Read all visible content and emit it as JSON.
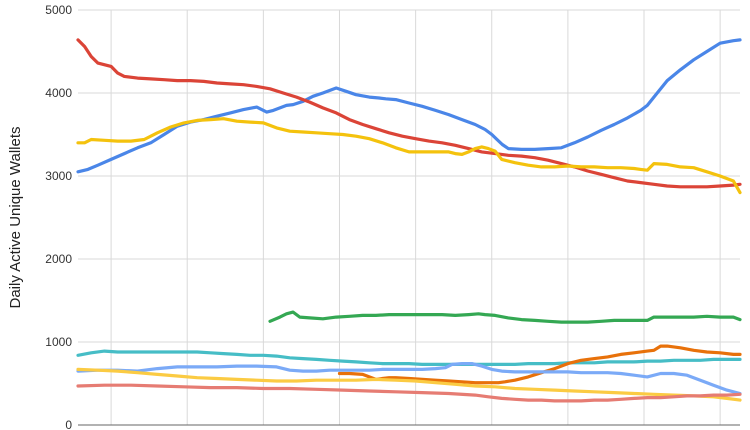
{
  "chart_data": {
    "type": "line",
    "title": "",
    "xlabel": "",
    "ylabel": "Daily Active Unique Wallets",
    "ylim": [
      0,
      5000
    ],
    "xlim": [
      0,
      100
    ],
    "yticks": [
      0,
      1000,
      2000,
      3000,
      4000,
      5000
    ],
    "xgrid_at": [
      5,
      16.5,
      28,
      39.5,
      51,
      62.5,
      74,
      85.5,
      97
    ],
    "grid": true,
    "legend": "none",
    "series": [
      {
        "color": "#4a86e8",
        "x": [
          0,
          1.5,
          3,
          5,
          7,
          9,
          11,
          13,
          15,
          17,
          19,
          21,
          23,
          25,
          27,
          28.5,
          29.5,
          30.5,
          31.5,
          32.5,
          34,
          35.5,
          37,
          39,
          40.5,
          42,
          44,
          45.5,
          46.5,
          48,
          50,
          52,
          54,
          56,
          58,
          60,
          61.5,
          62.5,
          63.3,
          64.1,
          65,
          67,
          69,
          71,
          73,
          75,
          77,
          79,
          81,
          83,
          85,
          86,
          87,
          89,
          91,
          93,
          95,
          97,
          99,
          100
        ],
        "values": [
          3050,
          3080,
          3130,
          3200,
          3270,
          3340,
          3400,
          3500,
          3600,
          3650,
          3680,
          3720,
          3760,
          3800,
          3830,
          3770,
          3790,
          3820,
          3850,
          3860,
          3900,
          3960,
          4000,
          4060,
          4020,
          3980,
          3950,
          3940,
          3930,
          3920,
          3880,
          3840,
          3790,
          3740,
          3680,
          3620,
          3560,
          3500,
          3440,
          3380,
          3330,
          3320,
          3320,
          3330,
          3340,
          3400,
          3470,
          3550,
          3620,
          3700,
          3790,
          3850,
          3950,
          4150,
          4280,
          4400,
          4500,
          4600,
          4630,
          4640
        ]
      },
      {
        "color": "#db4437",
        "x": [
          0,
          1,
          2,
          3,
          5,
          6,
          7,
          9,
          11,
          13,
          15,
          17,
          19,
          21,
          23,
          25,
          27,
          29,
          31,
          33,
          35,
          37,
          39,
          41,
          43,
          45,
          47,
          49,
          51,
          53,
          55,
          57,
          59,
          61,
          63,
          65,
          67,
          69,
          71,
          73,
          75,
          77,
          79,
          81,
          83,
          85,
          87,
          89,
          91,
          93,
          95,
          97,
          99,
          100
        ],
        "values": [
          4640,
          4560,
          4440,
          4360,
          4320,
          4240,
          4200,
          4180,
          4170,
          4160,
          4150,
          4150,
          4140,
          4120,
          4110,
          4100,
          4080,
          4050,
          4000,
          3950,
          3890,
          3820,
          3760,
          3680,
          3620,
          3570,
          3520,
          3480,
          3450,
          3420,
          3400,
          3370,
          3330,
          3290,
          3270,
          3250,
          3240,
          3220,
          3190,
          3150,
          3110,
          3060,
          3020,
          2980,
          2940,
          2920,
          2900,
          2880,
          2870,
          2870,
          2870,
          2880,
          2890,
          2900
        ]
      },
      {
        "color": "#f4c20d",
        "x": [
          0,
          1,
          2,
          4,
          6,
          8,
          10,
          12,
          14,
          16,
          18,
          20,
          22,
          24,
          26,
          28,
          30,
          32,
          34,
          36,
          38,
          40,
          42,
          44,
          46,
          48,
          50,
          52,
          54,
          56,
          57,
          58,
          59,
          60,
          61,
          62,
          63,
          64,
          66,
          68,
          70,
          72,
          74,
          76,
          78,
          80,
          82,
          84,
          85,
          86,
          87,
          89,
          91,
          93,
          95,
          97,
          99,
          100
        ],
        "values": [
          3400,
          3400,
          3440,
          3430,
          3420,
          3420,
          3440,
          3520,
          3590,
          3640,
          3670,
          3680,
          3690,
          3660,
          3650,
          3640,
          3580,
          3540,
          3530,
          3520,
          3510,
          3500,
          3480,
          3450,
          3400,
          3340,
          3290,
          3290,
          3290,
          3290,
          3270,
          3260,
          3290,
          3330,
          3350,
          3330,
          3300,
          3200,
          3160,
          3130,
          3110,
          3110,
          3120,
          3110,
          3110,
          3100,
          3100,
          3090,
          3080,
          3070,
          3150,
          3140,
          3110,
          3100,
          3050,
          3000,
          2940,
          2800
        ]
      },
      {
        "color": "#34a853",
        "x": [
          29,
          30.5,
          31.5,
          32.5,
          33.5,
          35,
          37,
          39,
          41,
          43,
          45,
          47,
          49,
          51,
          53,
          55,
          57,
          59,
          60.5,
          61.5,
          63,
          65,
          67,
          69,
          71,
          73,
          75,
          77,
          79,
          81,
          83,
          85,
          86,
          87,
          89,
          91,
          93,
          95,
          97,
          99,
          100
        ],
        "values": [
          1250,
          1300,
          1340,
          1360,
          1300,
          1290,
          1280,
          1300,
          1310,
          1320,
          1320,
          1330,
          1330,
          1330,
          1330,
          1330,
          1320,
          1330,
          1340,
          1330,
          1320,
          1290,
          1270,
          1260,
          1250,
          1240,
          1240,
          1240,
          1250,
          1260,
          1260,
          1260,
          1260,
          1300,
          1300,
          1300,
          1300,
          1310,
          1300,
          1300,
          1270
        ]
      },
      {
        "color": "#46bdc6",
        "x": [
          0,
          2,
          4,
          6,
          8,
          10,
          12,
          14,
          16,
          18,
          20,
          22,
          24,
          26,
          28,
          30,
          32,
          34,
          36,
          38,
          40,
          42,
          44,
          46,
          48,
          50,
          52,
          54,
          56,
          58,
          60,
          62,
          64,
          66,
          68,
          70,
          72,
          74,
          76,
          78,
          80,
          82,
          84,
          86,
          88,
          90,
          92,
          94,
          96,
          98,
          100
        ],
        "values": [
          840,
          870,
          890,
          880,
          880,
          880,
          880,
          880,
          880,
          880,
          870,
          860,
          850,
          840,
          840,
          830,
          810,
          800,
          790,
          780,
          770,
          760,
          750,
          740,
          740,
          740,
          730,
          730,
          730,
          730,
          730,
          730,
          730,
          730,
          740,
          740,
          740,
          750,
          750,
          750,
          760,
          760,
          760,
          770,
          770,
          780,
          780,
          780,
          790,
          790,
          790
        ]
      },
      {
        "color": "#e8710a",
        "x": [
          39.5,
          41,
          43,
          44,
          45,
          46,
          47,
          48,
          50,
          52,
          54,
          56,
          58,
          60,
          62,
          63.5,
          64.5,
          66,
          68,
          70,
          72,
          74,
          76,
          78,
          80,
          82,
          84,
          86,
          87,
          88,
          89,
          91,
          93,
          95,
          97,
          99,
          100
        ],
        "values": [
          620,
          620,
          610,
          580,
          550,
          560,
          570,
          570,
          560,
          550,
          540,
          530,
          520,
          510,
          510,
          510,
          520,
          540,
          580,
          630,
          680,
          740,
          780,
          800,
          820,
          850,
          870,
          890,
          900,
          950,
          950,
          930,
          900,
          880,
          870,
          850,
          850
        ]
      },
      {
        "color": "#7baaf7",
        "x": [
          0,
          3,
          6,
          9,
          12,
          15,
          18,
          21,
          24,
          27,
          30,
          32,
          34,
          36,
          38,
          40,
          42,
          44,
          46,
          48,
          50,
          52,
          54,
          55.5,
          56.5,
          58,
          59.5,
          61,
          62.5,
          64,
          66,
          68,
          70,
          72,
          74,
          76,
          78,
          80,
          82,
          84,
          86,
          88,
          90,
          92,
          94,
          96,
          98,
          100
        ],
        "values": [
          650,
          660,
          660,
          650,
          680,
          700,
          700,
          700,
          710,
          710,
          700,
          660,
          650,
          650,
          660,
          660,
          660,
          660,
          670,
          670,
          670,
          670,
          680,
          690,
          730,
          740,
          740,
          710,
          670,
          650,
          640,
          640,
          640,
          640,
          640,
          630,
          630,
          630,
          620,
          600,
          580,
          620,
          620,
          600,
          540,
          480,
          420,
          380
        ]
      },
      {
        "color": "#fbcb43",
        "x": [
          0,
          3,
          6,
          9,
          12,
          15,
          18,
          21,
          24,
          27,
          30,
          33,
          36,
          39,
          42,
          45,
          48,
          51,
          54,
          57,
          60,
          63,
          66,
          69,
          72,
          75,
          78,
          81,
          84,
          87,
          90,
          93,
          96,
          98,
          100
        ],
        "values": [
          670,
          660,
          650,
          630,
          610,
          590,
          570,
          560,
          550,
          540,
          530,
          530,
          540,
          540,
          540,
          550,
          540,
          530,
          510,
          490,
          470,
          460,
          440,
          430,
          420,
          410,
          400,
          390,
          380,
          370,
          360,
          350,
          340,
          320,
          300
        ]
      },
      {
        "color": "#e67c73",
        "x": [
          0,
          4,
          8,
          12,
          16,
          20,
          24,
          28,
          32,
          36,
          40,
          44,
          48,
          52,
          56,
          60,
          62,
          64,
          66,
          68,
          70,
          72,
          74,
          76,
          78,
          80,
          82,
          84,
          86,
          88,
          90,
          92,
          94,
          96,
          98,
          100
        ],
        "values": [
          470,
          480,
          480,
          470,
          460,
          450,
          450,
          440,
          440,
          430,
          420,
          410,
          400,
          390,
          380,
          360,
          340,
          320,
          310,
          300,
          300,
          290,
          290,
          290,
          300,
          300,
          310,
          320,
          330,
          330,
          340,
          350,
          350,
          360,
          360,
          370
        ]
      }
    ]
  }
}
